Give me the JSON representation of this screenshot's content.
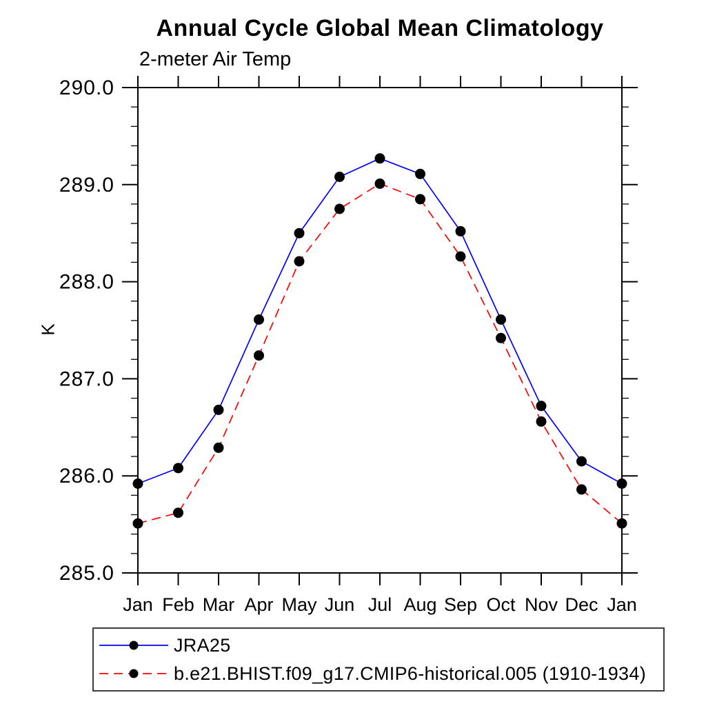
{
  "chart_data": {
    "type": "line",
    "title": "Annual Cycle Global Mean Climatology",
    "subtitle": "2-meter Air Temp",
    "xlabel": "",
    "ylabel": "K",
    "categories": [
      "Jan",
      "Feb",
      "Mar",
      "Apr",
      "May",
      "Jun",
      "Jul",
      "Aug",
      "Sep",
      "Oct",
      "Nov",
      "Dec",
      "Jan"
    ],
    "ylim": [
      285.0,
      290.0
    ],
    "y_major_tick_interval": 1.0,
    "y_minor_tick_interval": 0.2,
    "y_tick_labels": [
      "285.0",
      "286.0",
      "287.0",
      "288.0",
      "289.0",
      "290.0"
    ],
    "grid": false,
    "legend_position": "bottom-left",
    "axis_color": "#000000",
    "series": [
      {
        "name": "JRA25",
        "color": "#0000ff",
        "line_style": "solid",
        "marker": "filled-circle",
        "marker_color": "#000000",
        "values": [
          285.92,
          286.08,
          286.68,
          287.61,
          288.5,
          289.08,
          289.27,
          289.11,
          288.52,
          287.61,
          286.72,
          286.15,
          285.92
        ]
      },
      {
        "name": "b.e21.BHIST.f09_g17.CMIP6-historical.005 (1910-1934)",
        "color": "#ff0000",
        "line_style": "dashed",
        "marker": "filled-circle",
        "marker_color": "#000000",
        "values": [
          285.51,
          285.62,
          286.29,
          287.24,
          288.21,
          288.75,
          289.01,
          288.85,
          288.26,
          287.42,
          286.56,
          285.86,
          285.51
        ]
      }
    ]
  }
}
